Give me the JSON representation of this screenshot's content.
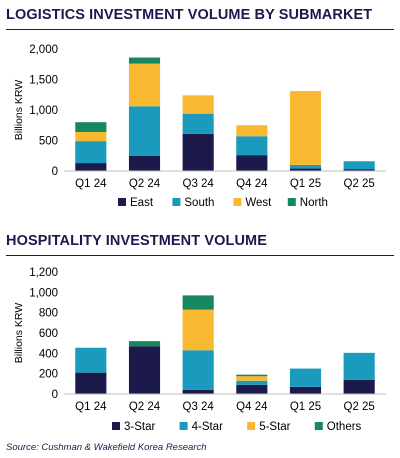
{
  "colors": {
    "navy": "#1b1a4a",
    "teal": "#1a9bbd",
    "gold": "#f8b830",
    "green": "#17875d",
    "title": "#1a1a4e"
  },
  "source": "Source: Cushman & Wakefield Korea Research",
  "chart_data": [
    {
      "type": "bar",
      "stacked": true,
      "title": "LOGISTICS INVESTMENT VOLUME BY SUBMARKET",
      "ylabel": "Billions KRW",
      "ylim": [
        0,
        2000
      ],
      "yticks": [
        "0",
        "500",
        "1,000",
        "1,500",
        "2,000"
      ],
      "ytick_values": [
        0,
        500,
        1000,
        1500,
        2000
      ],
      "categories": [
        "Q1 24",
        "Q2 24",
        "Q3 24",
        "Q4 24",
        "Q1 25",
        "Q2 25"
      ],
      "legend_position": "bottom",
      "series": [
        {
          "name": "East",
          "color": "#1b1a4a",
          "values": [
            130,
            250,
            610,
            260,
            40,
            30
          ]
        },
        {
          "name": "South",
          "color": "#1a9bbd",
          "values": [
            360,
            810,
            330,
            310,
            60,
            130
          ]
        },
        {
          "name": "West",
          "color": "#f8b830",
          "values": [
            150,
            700,
            300,
            180,
            1210,
            0
          ]
        },
        {
          "name": "North",
          "color": "#17875d",
          "values": [
            160,
            100,
            0,
            0,
            0,
            0
          ]
        }
      ]
    },
    {
      "type": "bar",
      "stacked": true,
      "title": "HOSPITALITY INVESTMENT VOLUME",
      "ylabel": "Billions KRW",
      "ylim": [
        0,
        1200
      ],
      "yticks": [
        "0",
        "200",
        "400",
        "600",
        "800",
        "1,000",
        "1,200"
      ],
      "ytick_values": [
        0,
        200,
        400,
        600,
        800,
        1000,
        1200
      ],
      "categories": [
        "Q1 24",
        "Q2 24",
        "Q3 24",
        "Q4 24",
        "Q1 25",
        "Q2 25"
      ],
      "legend_position": "bottom",
      "series": [
        {
          "name": "3-Star",
          "color": "#1b1a4a",
          "values": [
            210,
            470,
            40,
            90,
            70,
            140
          ]
        },
        {
          "name": "4-Star",
          "color": "#1a9bbd",
          "values": [
            245,
            0,
            390,
            40,
            180,
            265
          ]
        },
        {
          "name": "5-Star",
          "color": "#f8b830",
          "values": [
            0,
            0,
            400,
            45,
            0,
            0
          ]
        },
        {
          "name": "Others",
          "color": "#17875d",
          "values": [
            0,
            50,
            140,
            15,
            0,
            0
          ]
        }
      ]
    }
  ]
}
